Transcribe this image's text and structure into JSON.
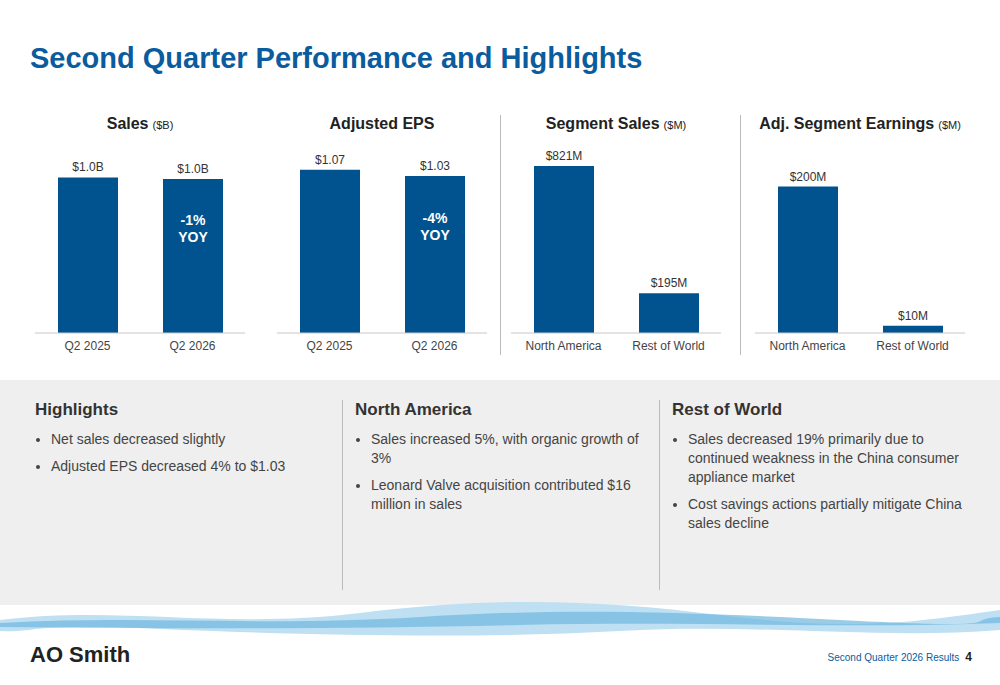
{
  "title": "Second Quarter Performance and Highlights",
  "chart_data": [
    {
      "type": "bar",
      "title": "Sales",
      "subtitle": "($B)",
      "categories": [
        "Q2 2025",
        "Q2 2026"
      ],
      "values": [
        1.02,
        1.01
      ],
      "value_labels": [
        "$1.0B",
        "$1.0B"
      ],
      "data_labels": true,
      "color": "#00538f",
      "ylim": [
        0,
        1.2
      ],
      "tick_labels": "x",
      "annotations": [
        {
          "category": "Q2 2026",
          "text": "-1% YOY"
        }
      ]
    },
    {
      "type": "bar",
      "title": "Adjusted EPS",
      "categories": [
        "Q2 2025",
        "Q2 2026"
      ],
      "values": [
        1.07,
        1.03
      ],
      "value_labels": [
        "$1.07",
        "$1.03"
      ],
      "data_labels": true,
      "color": "#00538f",
      "ylim": [
        0,
        1.2
      ],
      "tick_labels": "x",
      "annotations": [
        {
          "category": "Q2 2026",
          "text": "-4% YOY"
        }
      ]
    },
    {
      "type": "bar",
      "title": "Segment Sales",
      "subtitle": "($M)",
      "categories": [
        "North America",
        "Rest of World"
      ],
      "values": [
        821,
        195
      ],
      "value_labels": [
        "$821M",
        "$195M"
      ],
      "data_labels": true,
      "color": "#00538f",
      "ylim": [
        0,
        900
      ],
      "tick_labels": "x"
    },
    {
      "type": "bar",
      "title": "Adj. Segment Earnings",
      "subtitle": "($M)",
      "categories": [
        "North America",
        "Rest of World"
      ],
      "values": [
        200,
        10
      ],
      "value_labels": [
        "$200M",
        "$10M"
      ],
      "data_labels": true,
      "color": "#00538f",
      "ylim": [
        0,
        250
      ],
      "tick_labels": "x"
    }
  ],
  "panels": [
    {
      "title": "Highlights",
      "bullets": [
        "Net sales decreased slightly",
        "Adjusted EPS decreased 4% to $1.03"
      ]
    },
    {
      "title": "North America",
      "bullets": [
        "Sales increased 5%, with organic growth of 3%",
        "Leonard Valve acquisition contributed $16 million in sales"
      ]
    },
    {
      "title": "Rest of World",
      "bullets": [
        "Sales decreased 19% primarily due to continued weakness in the China consumer appliance market",
        "Cost savings actions partially mitigate China sales decline"
      ]
    }
  ],
  "footer": {
    "logo": "AO Smith",
    "text": "Second Quarter 2026 Results",
    "page": "4"
  }
}
